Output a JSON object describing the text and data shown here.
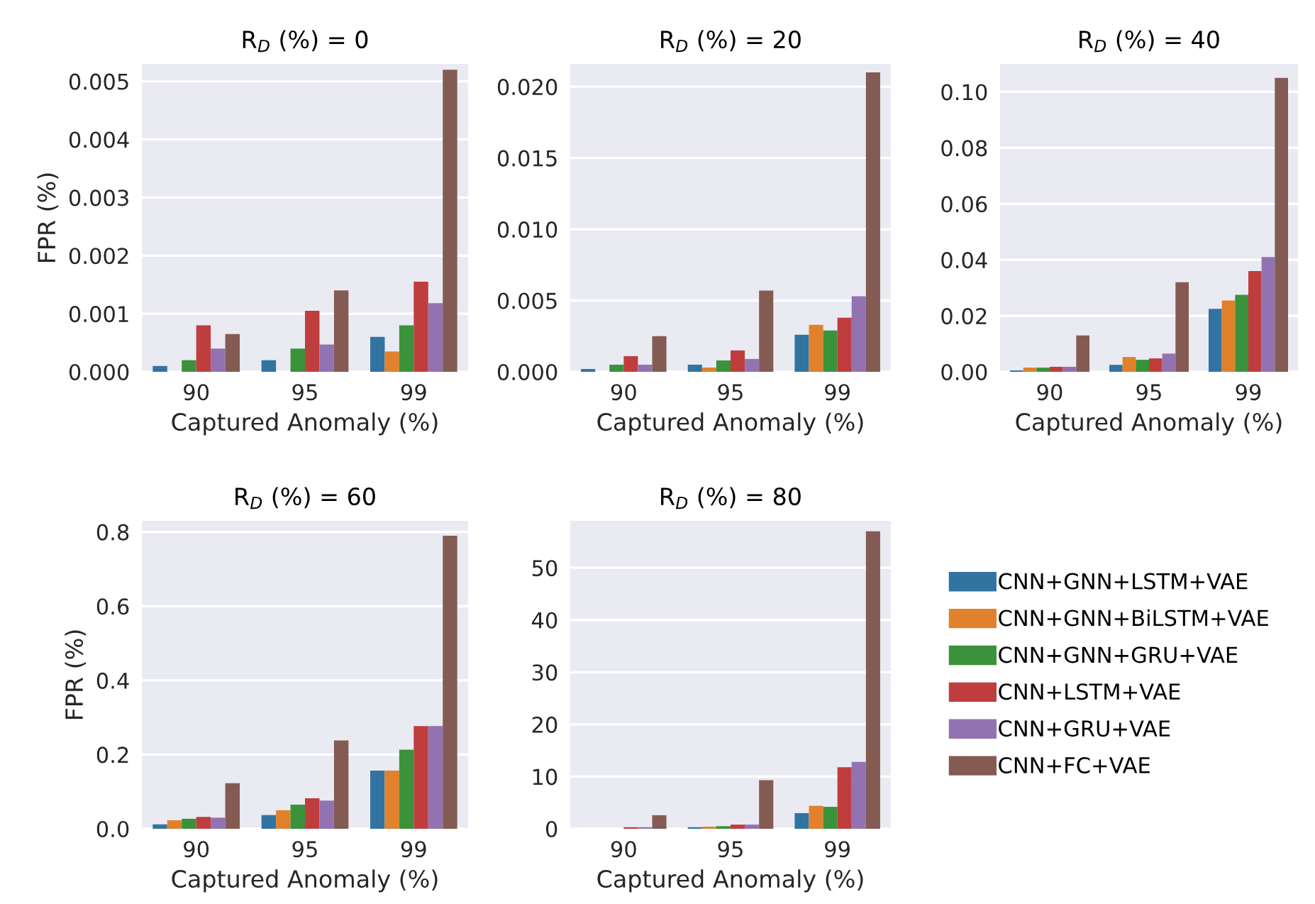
{
  "chart_data": [
    {
      "type": "bar",
      "title": "R$_{D}$ (%) = 0",
      "xlabel": "Captured Anomaly (%)",
      "ylabel": "FPR (%)",
      "categories": [
        "90",
        "95",
        "99"
      ],
      "ylim": [
        0,
        0.0053
      ],
      "yticks": [
        {
          "value": 0,
          "label": "0.000"
        },
        0.001,
        0.002,
        0.003,
        0.004,
        0.005
      ],
      "grid": "y",
      "series": [
        {
          "color": "#3274a1",
          "values": [
            0.0001,
            0.0002,
            0.0006
          ]
        },
        {
          "color": "#e1812c",
          "values": [
            0,
            0,
            0.00035
          ]
        },
        {
          "color": "#3a923a",
          "values": [
            0.0002,
            0.0004,
            0.0008
          ]
        },
        {
          "color": "#c03d3e",
          "values": [
            0.0008,
            0.00105,
            0.00155
          ]
        },
        {
          "color": "#9372b2",
          "values": [
            0.0004,
            0.00047,
            0.00118
          ]
        },
        {
          "color": "#845b53",
          "values": [
            0.00065,
            0.0014,
            0.0052
          ]
        }
      ]
    },
    {
      "type": "bar",
      "title": "R$_{D}$ (%) = 20",
      "xlabel": "Captured Anomaly (%)",
      "categories": [
        "90",
        "95",
        "99"
      ],
      "ylim": [
        0,
        0.0216
      ],
      "yticks": [
        {
          "value": 0,
          "label": "0.000"
        },
        0.005,
        {
          "value": 0.01,
          "label": "0.010"
        },
        0.015,
        {
          "value": 0.02,
          "label": "0.020"
        }
      ],
      "grid": "y",
      "series": [
        {
          "color": "#3274a1",
          "values": [
            0.0002,
            0.0005,
            0.0026
          ]
        },
        {
          "color": "#e1812c",
          "values": [
            0,
            0.0003,
            0.0033
          ]
        },
        {
          "color": "#3a923a",
          "values": [
            0.0005,
            0.0008,
            0.0029
          ]
        },
        {
          "color": "#c03d3e",
          "values": [
            0.0011,
            0.0015,
            0.0038
          ]
        },
        {
          "color": "#9372b2",
          "values": [
            0.0005,
            0.0009,
            0.0053
          ]
        },
        {
          "color": "#845b53",
          "values": [
            0.0025,
            0.0057,
            0.021
          ]
        }
      ]
    },
    {
      "type": "bar",
      "title": "R$_{D}$ (%) = 40",
      "xlabel": "Captured Anomaly (%)",
      "categories": [
        "90",
        "95",
        "99"
      ],
      "ylim": [
        0,
        0.11
      ],
      "yticks": [
        {
          "value": 0,
          "label": "0.00"
        },
        {
          "value": 0.02,
          "label": "0.02"
        },
        {
          "value": 0.04,
          "label": "0.04"
        },
        {
          "value": 0.06,
          "label": "0.06"
        },
        {
          "value": 0.08,
          "label": "0.08"
        },
        {
          "value": 0.1,
          "label": "0.10"
        }
      ],
      "grid": "y",
      "series": [
        {
          "color": "#3274a1",
          "values": [
            0.0005,
            0.0025,
            0.0225
          ]
        },
        {
          "color": "#e1812c",
          "values": [
            0.0015,
            0.0053,
            0.0255
          ]
        },
        {
          "color": "#3a923a",
          "values": [
            0.0015,
            0.0043,
            0.0275
          ]
        },
        {
          "color": "#c03d3e",
          "values": [
            0.0018,
            0.0048,
            0.036
          ]
        },
        {
          "color": "#9372b2",
          "values": [
            0.0018,
            0.0065,
            0.041
          ]
        },
        {
          "color": "#845b53",
          "values": [
            0.013,
            0.032,
            0.105
          ]
        }
      ]
    },
    {
      "type": "bar",
      "title": "R$_{D}$ (%) = 60",
      "xlabel": "Captured Anomaly (%)",
      "ylabel": "FPR (%)",
      "categories": [
        "90",
        "95",
        "99"
      ],
      "ylim": [
        0,
        0.83
      ],
      "yticks": [
        {
          "value": 0,
          "label": "0.0"
        },
        0.2,
        0.4,
        0.6,
        0.8
      ],
      "grid": "y",
      "series": [
        {
          "color": "#3274a1",
          "values": [
            0.012,
            0.037,
            0.157
          ]
        },
        {
          "color": "#e1812c",
          "values": [
            0.023,
            0.05,
            0.157
          ]
        },
        {
          "color": "#3a923a",
          "values": [
            0.027,
            0.065,
            0.213
          ]
        },
        {
          "color": "#c03d3e",
          "values": [
            0.032,
            0.082,
            0.277
          ]
        },
        {
          "color": "#9372b2",
          "values": [
            0.03,
            0.076,
            0.277
          ]
        },
        {
          "color": "#845b53",
          "values": [
            0.123,
            0.238,
            0.79
          ]
        }
      ]
    },
    {
      "type": "bar",
      "title": "R$_{D}$ (%) = 80",
      "xlabel": "Captured Anomaly (%)",
      "categories": [
        "90",
        "95",
        "99"
      ],
      "ylim": [
        0,
        59
      ],
      "yticks": [
        0,
        10,
        20,
        30,
        40,
        50
      ],
      "grid": "y",
      "legend": "right",
      "series": [
        {
          "name": "CNN+GNN+LSTM+VAE",
          "color": "#3274a1",
          "values": [
            0,
            0.3,
            3
          ]
        },
        {
          "name": "CNN+GNN+BiLSTM+VAE",
          "color": "#e1812c",
          "values": [
            0,
            0.4,
            4.4
          ]
        },
        {
          "name": "CNN+GNN+GRU+VAE",
          "color": "#3a923a",
          "values": [
            0,
            0.5,
            4.2
          ]
        },
        {
          "name": "CNN+LSTM+VAE",
          "color": "#c03d3e",
          "values": [
            0.3,
            0.8,
            11.8
          ]
        },
        {
          "name": "CNN+GRU+VAE",
          "color": "#9372b2",
          "values": [
            0.3,
            0.8,
            12.8
          ]
        },
        {
          "name": "CNN+FC+VAE",
          "color": "#845b53",
          "values": [
            2.6,
            9.3,
            57
          ]
        }
      ]
    }
  ]
}
